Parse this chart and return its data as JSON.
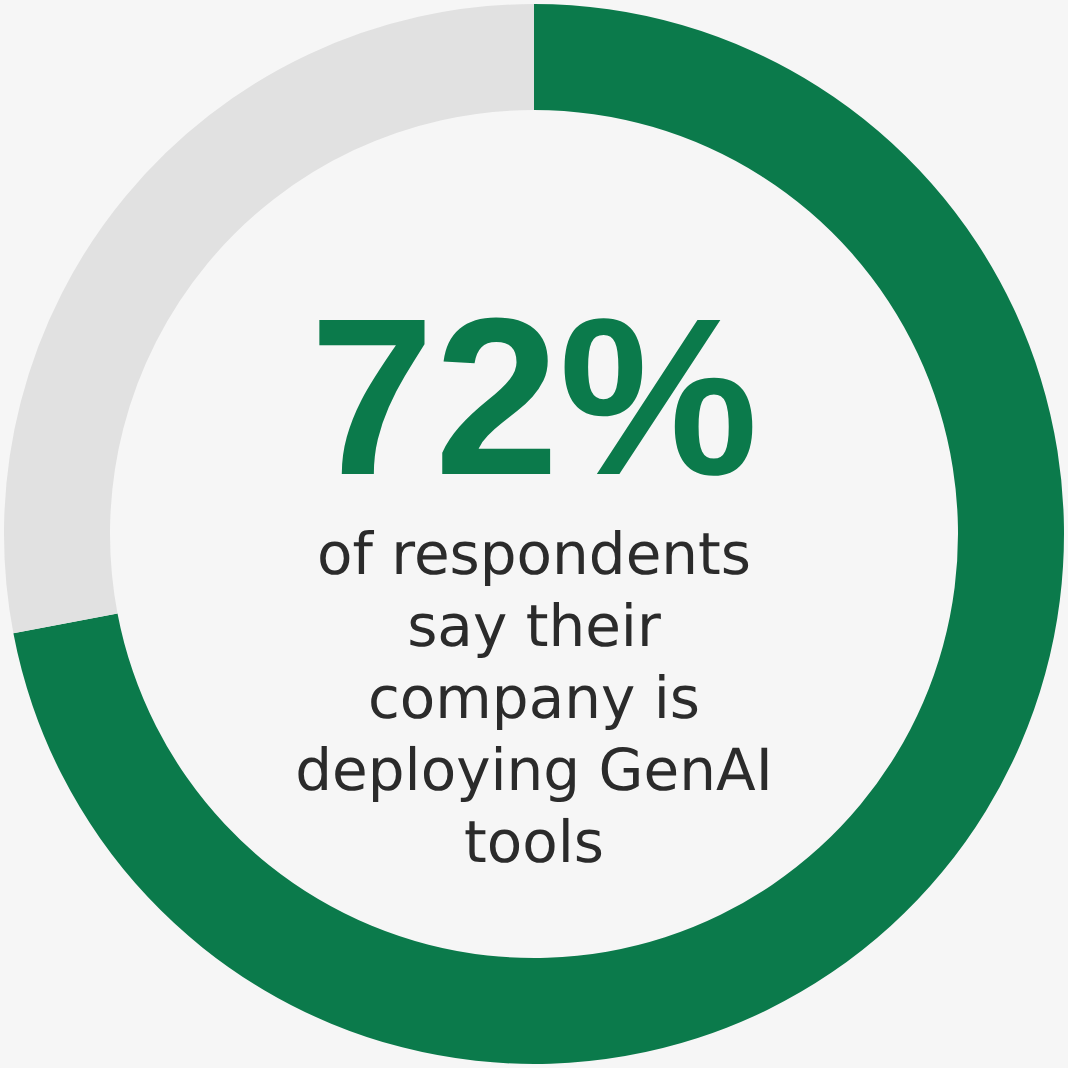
{
  "chart_data": {
    "type": "donut",
    "categories": [
      null,
      null
    ],
    "values": [
      72,
      28
    ],
    "colors": [
      "#0b7a4b",
      "#e1e1e1"
    ],
    "value_labels": [
      "72%",
      null
    ],
    "annotations": [
      "of respondents say their company is deploying GenAI tools"
    ],
    "legend": false
  }
}
